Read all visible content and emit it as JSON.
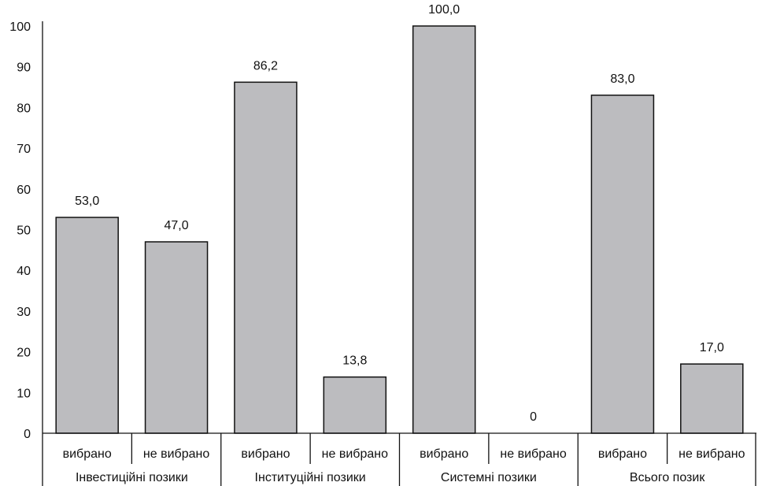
{
  "chart_data": {
    "type": "bar",
    "ylim": [
      0,
      100
    ],
    "yticks": [
      "0",
      "10",
      "20",
      "30",
      "40",
      "50",
      "60",
      "70",
      "80",
      "90",
      "100"
    ],
    "groups": [
      {
        "label": "Інвестиційні позики",
        "bars": [
          {
            "label": "вибрано",
            "value": 53.0,
            "value_label": "53,0"
          },
          {
            "label": "не вибрано",
            "value": 47.0,
            "value_label": "47,0"
          }
        ]
      },
      {
        "label": "Інституційні позики",
        "bars": [
          {
            "label": "вибрано",
            "value": 86.2,
            "value_label": "86,2"
          },
          {
            "label": "не вибрано",
            "value": 13.8,
            "value_label": "13,8"
          }
        ]
      },
      {
        "label": "Системні позики",
        "bars": [
          {
            "label": "вибрано",
            "value": 100.0,
            "value_label": "100,0"
          },
          {
            "label": "не вибрано",
            "value": 0,
            "value_label": "0"
          }
        ]
      },
      {
        "label": "Всього позик",
        "bars": [
          {
            "label": "вибрано",
            "value": 83.0,
            "value_label": "83,0"
          },
          {
            "label": "не вибрано",
            "value": 17.0,
            "value_label": "17,0"
          }
        ]
      }
    ],
    "bar_color": "#bcbcbf",
    "grid": false,
    "legend": "none"
  }
}
